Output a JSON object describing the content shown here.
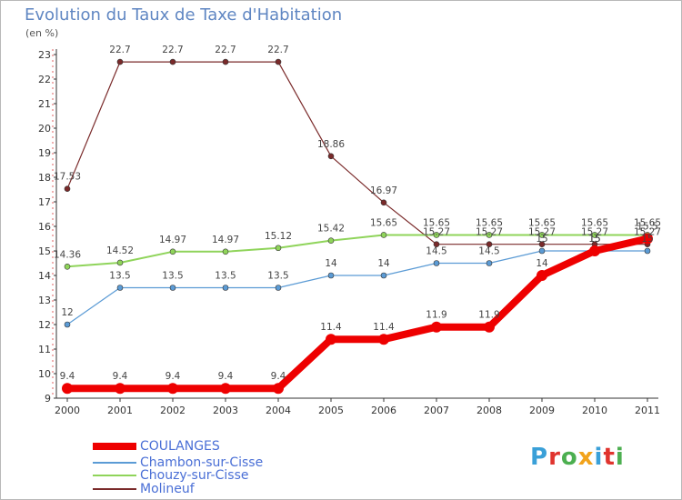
{
  "header": {
    "title": "Evolution du Taux de Taxe d'Habitation",
    "subtitle": "(en %)"
  },
  "logo": {
    "text": "Proxiti",
    "letter_colors": [
      "#3aa0d8",
      "#e0342e",
      "#4caf50",
      "#f2a31b",
      "#3aa0d8",
      "#e0342e",
      "#4caf50"
    ]
  },
  "chart_data": {
    "type": "line",
    "x": [
      2000,
      2001,
      2002,
      2003,
      2004,
      2005,
      2006,
      2007,
      2008,
      2009,
      2010,
      2011
    ],
    "ylim": [
      9,
      23
    ],
    "yticks": [
      9,
      10,
      11,
      12,
      13,
      14,
      15,
      16,
      17,
      18,
      19,
      20,
      21,
      22,
      23
    ],
    "grid": false,
    "legend_position": "bottom",
    "series": [
      {
        "name": "COULANGES",
        "color": "#ee0000",
        "values": [
          9.4,
          9.4,
          9.4,
          9.4,
          9.4,
          11.4,
          11.4,
          11.9,
          11.9,
          14,
          15,
          15.5
        ],
        "labels": [
          "9.4",
          "9.4",
          "9.4",
          "9.4",
          "9.4",
          "11.4",
          "11.4",
          "11.9",
          "11.9",
          "14",
          "15",
          "15.5"
        ]
      },
      {
        "name": "Chambon-sur-Cisse",
        "color": "#5b9bd5",
        "values": [
          12,
          13.5,
          13.5,
          13.5,
          13.5,
          14,
          14,
          14.5,
          14.5,
          15,
          15,
          15
        ],
        "labels": [
          "12",
          "13.5",
          "13.5",
          "13.5",
          "13.5",
          "14",
          "14",
          "14.5",
          "14.5",
          "15",
          "15",
          "15"
        ]
      },
      {
        "name": "Chouzy-sur-Cisse",
        "color": "#8fd45a",
        "values": [
          14.36,
          14.52,
          14.97,
          14.97,
          15.12,
          15.42,
          15.65,
          15.65,
          15.65,
          15.65,
          15.65,
          15.65
        ],
        "labels": [
          "14.36",
          "14.52",
          "14.97",
          "14.97",
          "15.12",
          "15.42",
          "15.65",
          "15.65",
          "15.65",
          "15.65",
          "15.65",
          "15.65"
        ]
      },
      {
        "name": "Molineuf",
        "color": "#7a2a2a",
        "values": [
          17.53,
          22.7,
          22.7,
          22.7,
          22.7,
          18.86,
          16.97,
          15.27,
          15.27,
          15.27,
          15.27,
          15.27
        ],
        "labels": [
          "17.53",
          "22.7",
          "22.7",
          "22.7",
          "22.7",
          "18.86",
          "16.97",
          "15.27",
          "15.27",
          "15.27",
          "15.27",
          "15.27"
        ]
      }
    ]
  }
}
